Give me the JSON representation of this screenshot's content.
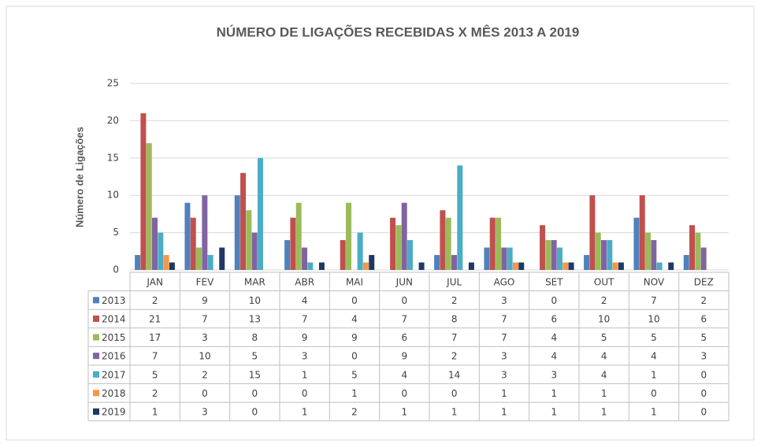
{
  "chart_data": {
    "type": "bar",
    "title": "NÚMERO DE LIGAÇÕES RECEBIDAS X MÊS 2013 A 2019",
    "y_label": "Número de Ligações",
    "categories": [
      "JAN",
      "FEV",
      "MAR",
      "ABR",
      "MAI",
      "JUN",
      "JUL",
      "AGO",
      "SET",
      "OUT",
      "NOV",
      "DEZ"
    ],
    "series": [
      {
        "name": "2013",
        "color": "#4f81bd",
        "values": [
          2,
          9,
          10,
          4,
          0,
          0,
          2,
          3,
          0,
          2,
          7,
          2
        ]
      },
      {
        "name": "2014",
        "color": "#c0504d",
        "values": [
          21,
          7,
          13,
          7,
          4,
          7,
          8,
          7,
          6,
          10,
          10,
          6
        ]
      },
      {
        "name": "2015",
        "color": "#9bbb59",
        "values": [
          17,
          3,
          8,
          9,
          9,
          6,
          7,
          7,
          4,
          5,
          5,
          5
        ]
      },
      {
        "name": "2016",
        "color": "#8064a2",
        "values": [
          7,
          10,
          5,
          3,
          0,
          9,
          2,
          3,
          4,
          4,
          4,
          3
        ]
      },
      {
        "name": "2017",
        "color": "#4bacc6",
        "values": [
          5,
          2,
          15,
          1,
          5,
          4,
          14,
          3,
          3,
          4,
          1,
          0
        ]
      },
      {
        "name": "2018",
        "color": "#f79646",
        "values": [
          2,
          0,
          0,
          0,
          1,
          0,
          0,
          1,
          1,
          1,
          0,
          0
        ]
      },
      {
        "name": "2019",
        "color": "#1f3864",
        "values": [
          1,
          3,
          0,
          1,
          2,
          1,
          1,
          1,
          1,
          1,
          1,
          0
        ]
      }
    ],
    "ylim": [
      0,
      25
    ],
    "yticks": [
      0,
      5,
      10,
      15,
      20,
      25
    ],
    "grid": true
  }
}
